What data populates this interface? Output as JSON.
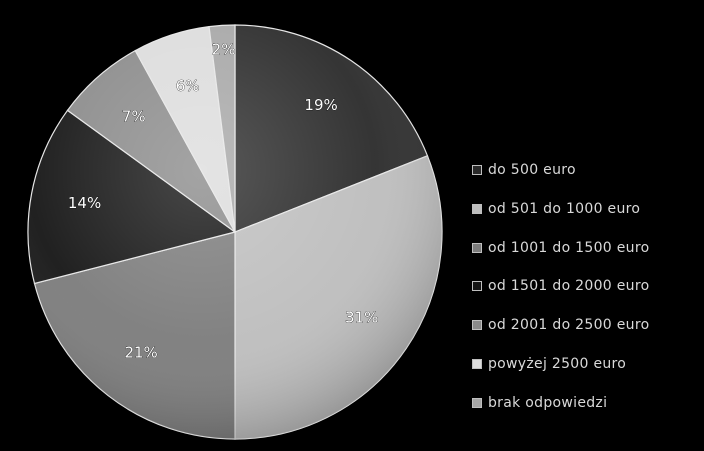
{
  "chart_data": {
    "type": "pie",
    "title": "",
    "categories": [
      "do 500 euro",
      "od 501 do 1000 euro",
      "od 1001 do 1500 euro",
      "od 1501 do 2000 euro",
      "od 2001 do 2500 euro",
      "powyżej 2500 euro",
      "brak odpowiedzi"
    ],
    "values": [
      19,
      31,
      21,
      14,
      7,
      6,
      2
    ],
    "data_labels": [
      "19%",
      "31%",
      "21%",
      "14%",
      "7%",
      "6%",
      "2%"
    ],
    "colors": [
      "#2a2a2a",
      "#bdbdbd",
      "#7b7b7b",
      "#151515",
      "#8a8a8a",
      "#dcdcdc",
      "#a6a6a6"
    ],
    "start_angle": "top (12 o'clock), clockwise",
    "legend_position": "right"
  }
}
